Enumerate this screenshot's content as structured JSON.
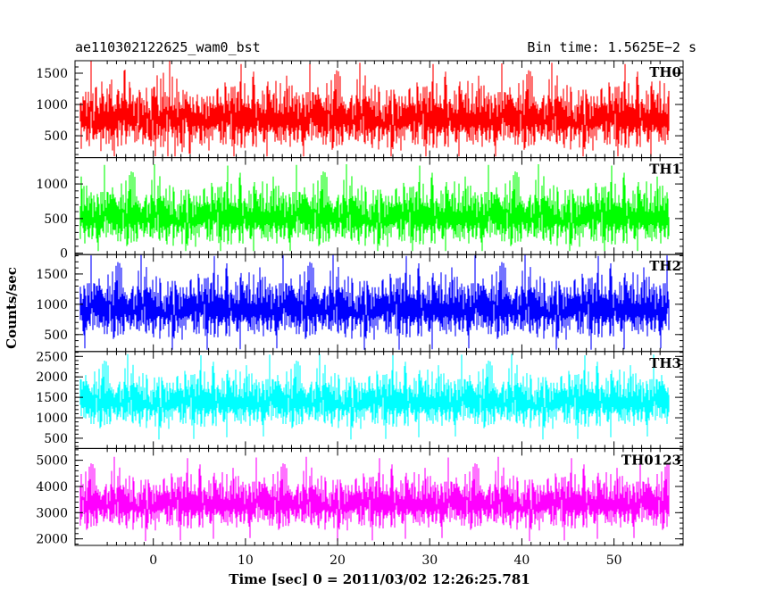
{
  "header": {
    "title": "ae110302122625_wam0_bst",
    "bin_time": "Bin time: 1.5625E−2 s"
  },
  "chart_data": {
    "type": "line",
    "xlabel": "Time [sec] 0 = 2011/03/02 12:26:25.781",
    "ylabel": "Counts/sec",
    "xlim": [
      -8.5,
      57.5
    ],
    "x_range": [
      -8.0,
      56.0
    ],
    "bin_time": 0.015625,
    "x_ticks": [
      0,
      10,
      20,
      30,
      40,
      50
    ],
    "grid": false,
    "legend": "none",
    "panels": [
      {
        "name": "TH0",
        "color": "#ff0000",
        "ylim": [
          150,
          1700
        ],
        "y_ticks": [
          500,
          1000,
          1500
        ],
        "baseline": 780,
        "spread": 330,
        "min": 170,
        "max": 1700
      },
      {
        "name": "TH1",
        "color": "#00ff00",
        "ylim": [
          -20,
          1380
        ],
        "y_ticks": [
          0,
          500,
          1000
        ],
        "baseline": 530,
        "spread": 280,
        "min": 30,
        "max": 1380
      },
      {
        "name": "TH2",
        "color": "#0000ff",
        "ylim": [
          220,
          1820
        ],
        "y_ticks": [
          500,
          1000,
          1500
        ],
        "baseline": 930,
        "spread": 330,
        "min": 250,
        "max": 1820
      },
      {
        "name": "TH3",
        "color": "#00ffff",
        "ylim": [
          250,
          2620
        ],
        "y_ticks": [
          500,
          1000,
          1500,
          2000,
          2500
        ],
        "baseline": 1400,
        "spread": 430,
        "min": 280,
        "max": 2620
      },
      {
        "name": "TH0123",
        "color": "#ff00ff",
        "ylim": [
          1750,
          5450
        ],
        "y_ticks": [
          2000,
          3000,
          4000,
          5000
        ],
        "baseline": 3350,
        "spread": 660,
        "min": 1780,
        "max": 5450
      }
    ]
  }
}
